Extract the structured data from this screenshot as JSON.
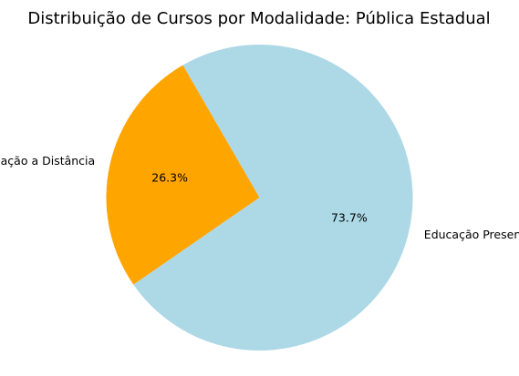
{
  "chart_data": {
    "type": "pie",
    "title": "Distribuição de Cursos por Modalidade: Pública Estadual",
    "slices": [
      {
        "label": "Educação a Distância",
        "value": 26.3,
        "pct_label": "26.3%",
        "color": "#FFA500"
      },
      {
        "label": "Educação Presencial",
        "value": 73.7,
        "pct_label": "73.7%",
        "color": "#ADD8E6"
      }
    ],
    "start_angle_deg": 120,
    "direction": "counterclockwise"
  }
}
